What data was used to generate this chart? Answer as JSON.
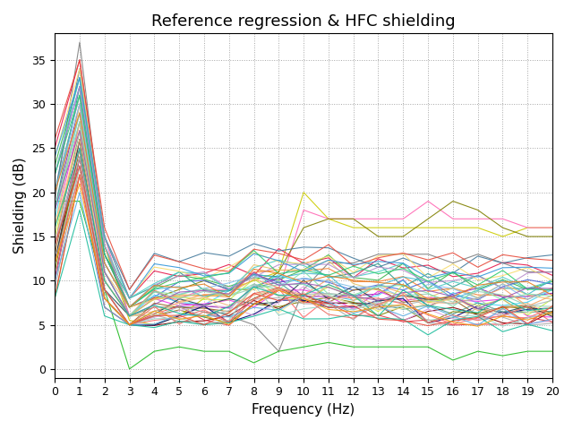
{
  "title": "Reference regression & HFC shielding",
  "xlabel": "Frequency (Hz)",
  "ylabel": "Shielding (dB)",
  "xlim": [
    0,
    20
  ],
  "ylim": [
    -1,
    38
  ],
  "xticks": [
    0,
    1,
    2,
    3,
    4,
    5,
    6,
    7,
    8,
    9,
    10,
    11,
    12,
    13,
    14,
    15,
    16,
    17,
    18,
    19,
    20
  ],
  "yticks": [
    0,
    5,
    10,
    15,
    20,
    25,
    30,
    35
  ],
  "figsize": [
    6.4,
    4.8
  ],
  "dpi": 100,
  "freqs": [
    0,
    1,
    2,
    3,
    4,
    5,
    6,
    7,
    8,
    9,
    10,
    11,
    12,
    13,
    14,
    15,
    16,
    17,
    18,
    19,
    20
  ]
}
